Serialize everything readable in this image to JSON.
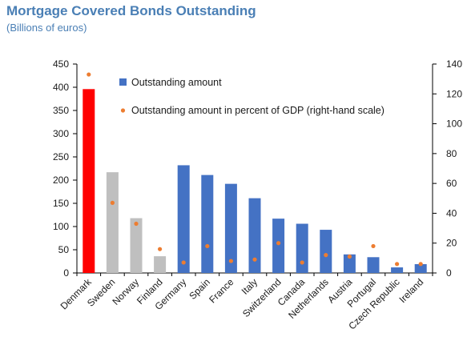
{
  "title": "Mortgage Covered Bonds Outstanding",
  "subtitle": "(Billions of euros)",
  "legend": {
    "bars": "Outstanding amount",
    "dots": "Outstanding amount in percent of GDP (right-hand scale)"
  },
  "colors": {
    "title": "#4a7fb5",
    "highlight": "#ff0000",
    "gray": "#bfbfbf",
    "blue": "#4472c4",
    "dot": "#ed7d31"
  },
  "chart_data": {
    "type": "bar",
    "title": "Mortgage Covered Bonds Outstanding",
    "subtitle": "(Billions of euros)",
    "categories": [
      "Denmark",
      "Sweden",
      "Norway",
      "Finland",
      "Germany",
      "Spain",
      "France",
      "Italy",
      "Switzerland",
      "Canada",
      "Netherlands",
      "Austria",
      "Portugal",
      "Czech Republic",
      "Ireland"
    ],
    "bar_colors": [
      "red",
      "gray",
      "gray",
      "gray",
      "blue",
      "blue",
      "blue",
      "blue",
      "blue",
      "blue",
      "blue",
      "blue",
      "blue",
      "blue",
      "blue"
    ],
    "series": [
      {
        "name": "Outstanding amount",
        "axis": "left",
        "values": [
          396,
          217,
          118,
          36,
          232,
          211,
          192,
          161,
          117,
          106,
          93,
          40,
          34,
          12,
          19
        ]
      },
      {
        "name": "Outstanding amount in percent of GDP (right-hand scale)",
        "axis": "right",
        "type": "scatter",
        "values": [
          133,
          47,
          33,
          16,
          7,
          18,
          8,
          9,
          20,
          7,
          12,
          11,
          18,
          6,
          6
        ]
      }
    ],
    "ylim_left": [
      0,
      450
    ],
    "yticks_left": [
      0,
      50,
      100,
      150,
      200,
      250,
      300,
      350,
      400,
      450
    ],
    "ylim_right": [
      0,
      140
    ],
    "yticks_right": [
      0,
      20,
      40,
      60,
      80,
      100,
      120,
      140
    ],
    "legend_position": "top-left",
    "grid": false
  }
}
